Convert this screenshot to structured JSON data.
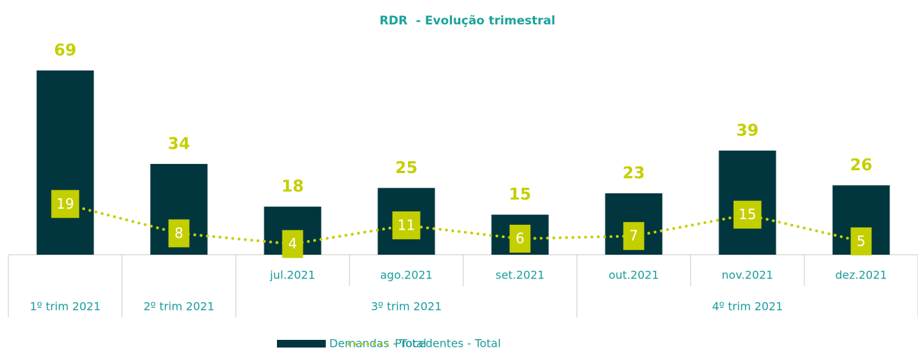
{
  "chart_data": {
    "type": "bar",
    "title": "RDR  - Evolução trimestral",
    "categories": [
      null,
      null,
      "jul.2021",
      "ago.2021",
      "set.2021",
      "out.2021",
      "nov.2021",
      "dez.2021"
    ],
    "category_groups": [
      {
        "label": "1º trim 2021",
        "span": 1
      },
      {
        "label": "2º trim 2021",
        "span": 1
      },
      {
        "label": "3º trim 2021",
        "span": 3
      },
      {
        "label": "4º trim 2021",
        "span": 3
      }
    ],
    "series": [
      {
        "name": "Demandas - Total",
        "type": "bar",
        "color": "#02363f",
        "values": [
          69,
          34,
          18,
          25,
          15,
          23,
          39,
          26
        ]
      },
      {
        "name": "Procedentes - Total",
        "type": "line",
        "color": "#c4cf00",
        "values": [
          19,
          8,
          4,
          11,
          6,
          7,
          15,
          5
        ]
      }
    ],
    "ylim": [
      0,
      72
    ]
  }
}
